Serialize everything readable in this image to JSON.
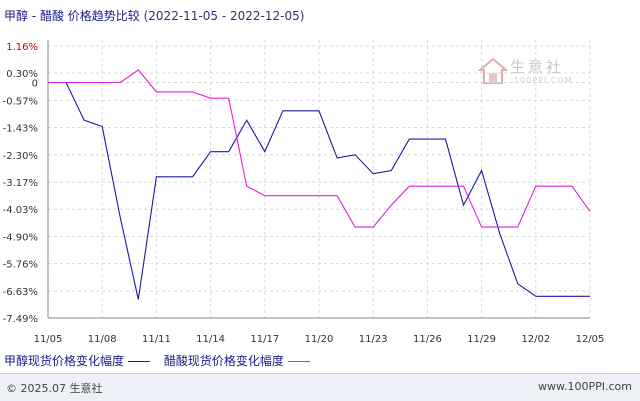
{
  "title": {
    "main": "甲醇 - 醋酸 价格趋势比较",
    "range": "(2022-11-05 - 2022-12-05)"
  },
  "watermark": {
    "text": "生意社",
    "sub": "100PPI.COM"
  },
  "footer": {
    "copyright": "© 2025.07 生意社",
    "site": "www.100PPI.com"
  },
  "colors": {
    "methanol": "#1a1aa8",
    "acetic": "#e01ee0",
    "axis": "#888888",
    "grid": "#d8d8d8",
    "first_label": "#cc0000"
  },
  "chart_data": {
    "type": "line",
    "title": "甲醇 - 醋酸 价格趋势比较",
    "x_dates": [
      "11/05",
      "11/06",
      "11/07",
      "11/08",
      "11/09",
      "11/10",
      "11/11",
      "11/12",
      "11/13",
      "11/14",
      "11/15",
      "11/16",
      "11/17",
      "11/18",
      "11/19",
      "11/20",
      "11/21",
      "11/22",
      "11/23",
      "11/24",
      "11/25",
      "11/26",
      "11/27",
      "11/28",
      "11/29",
      "11/30",
      "12/01",
      "12/02",
      "12/03",
      "12/04",
      "12/05"
    ],
    "x_tick_labels": [
      "11/05",
      "11/08",
      "11/11",
      "11/14",
      "11/17",
      "11/20",
      "11/23",
      "11/26",
      "11/29",
      "12/02",
      "12/05"
    ],
    "y_tick_labels": [
      "1.16%",
      "0.30%",
      "0",
      "-0.57%",
      "-1.43%",
      "-2.30%",
      "-3.17%",
      "-4.03%",
      "-4.90%",
      "-5.76%",
      "-6.63%",
      "-7.49%"
    ],
    "y_tick_values": [
      1.16,
      0.3,
      0,
      -0.57,
      -1.43,
      -2.3,
      -3.17,
      -4.03,
      -4.9,
      -5.76,
      -6.63,
      -7.49
    ],
    "ylim": [
      -7.49,
      1.16
    ],
    "grid": true,
    "series": [
      {
        "name": "甲醇现货价格变化幅度",
        "values": [
          0,
          0,
          -1.2,
          -1.4,
          -4.3,
          -6.9,
          -3.0,
          -3.0,
          -3.0,
          -2.2,
          -2.2,
          -1.2,
          -2.2,
          -0.9,
          -0.9,
          -0.9,
          -2.4,
          -2.3,
          -2.9,
          -2.8,
          -1.8,
          -1.8,
          -1.8,
          -3.9,
          -2.8,
          -4.8,
          -6.4,
          -6.8,
          -6.8,
          -6.8,
          -6.8
        ]
      },
      {
        "name": "醋酸现货价格变化幅度",
        "values": [
          0,
          0,
          0,
          0,
          0,
          0.4,
          -0.3,
          -0.3,
          -0.3,
          -0.5,
          -0.5,
          -3.3,
          -3.6,
          -3.6,
          -3.6,
          -3.6,
          -3.6,
          -4.6,
          -4.6,
          -3.9,
          -3.3,
          -3.3,
          -3.3,
          -3.3,
          -4.6,
          -4.6,
          -4.6,
          -3.3,
          -3.3,
          -3.3,
          -4.1
        ]
      }
    ],
    "legend_position": "bottom"
  }
}
